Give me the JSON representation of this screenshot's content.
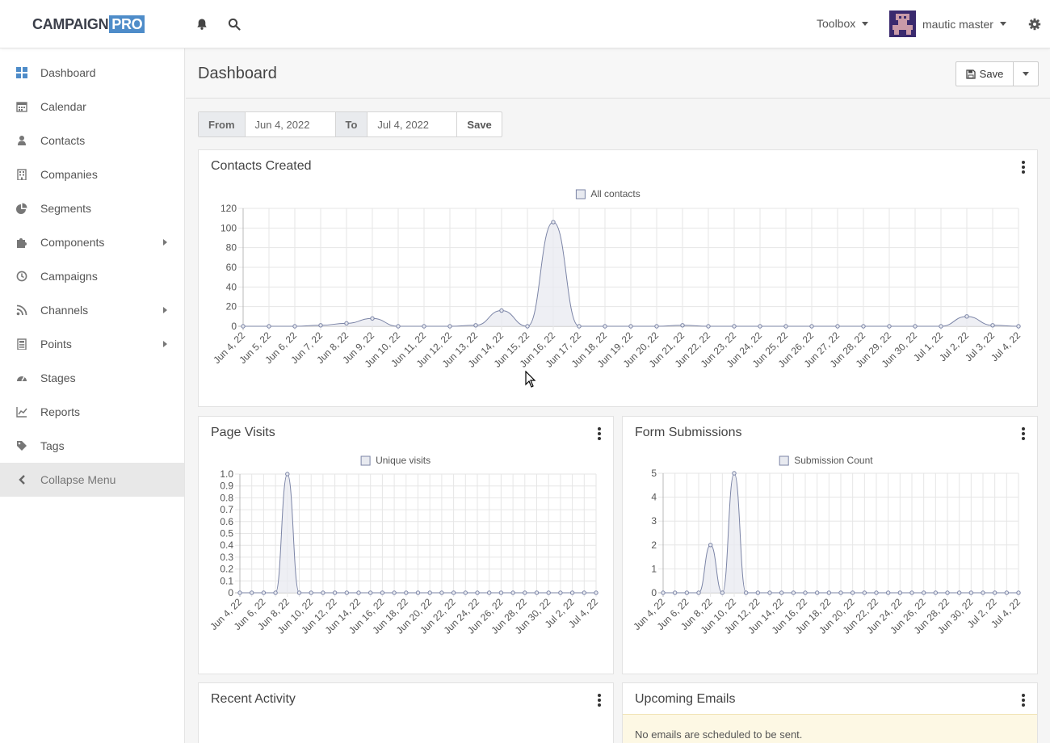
{
  "app": {
    "logo_a": "CAMPAIGN",
    "logo_b": "PRO",
    "toolbox_label": "Toolbox",
    "user_name": "mautic master"
  },
  "sidebar": {
    "items": [
      {
        "label": "Dashboard",
        "icon": "dashboard-icon",
        "submenu": false
      },
      {
        "label": "Calendar",
        "icon": "calendar-icon",
        "submenu": false
      },
      {
        "label": "Contacts",
        "icon": "user-icon",
        "submenu": false
      },
      {
        "label": "Companies",
        "icon": "building-icon",
        "submenu": false
      },
      {
        "label": "Segments",
        "icon": "pie-chart-icon",
        "submenu": false
      },
      {
        "label": "Components",
        "icon": "puzzle-icon",
        "submenu": true
      },
      {
        "label": "Campaigns",
        "icon": "clock-icon",
        "submenu": false
      },
      {
        "label": "Channels",
        "icon": "rss-icon",
        "submenu": true
      },
      {
        "label": "Points",
        "icon": "calculator-icon",
        "submenu": true
      },
      {
        "label": "Stages",
        "icon": "tachometer-icon",
        "submenu": false
      },
      {
        "label": "Reports",
        "icon": "line-chart-icon",
        "submenu": false
      },
      {
        "label": "Tags",
        "icon": "tag-icon",
        "submenu": false
      }
    ],
    "collapse_label": "Collapse Menu"
  },
  "main": {
    "title": "Dashboard",
    "save_label": "Save",
    "date_filter": {
      "from_label": "From",
      "from_value": "Jun 4, 2022",
      "to_label": "To",
      "to_value": "Jul 4, 2022",
      "save_label": "Save"
    },
    "widgets": {
      "contacts_title": "Contacts Created",
      "page_visits_title": "Page Visits",
      "form_submissions_title": "Form Submissions",
      "recent_activity_title": "Recent Activity",
      "upcoming_emails_title": "Upcoming Emails",
      "upcoming_emails_notice": "No emails are scheduled to be sent."
    }
  },
  "colors": {
    "line": "#7b84a6",
    "fill": "#e8eaf0",
    "accent": "#4e8cc9"
  },
  "chart_data": [
    {
      "type": "area",
      "title": "Contacts Created",
      "series": [
        {
          "name": "All contacts",
          "values": [
            0,
            0,
            0,
            1,
            3,
            8,
            0,
            0,
            0,
            1,
            16,
            0,
            106,
            0,
            0,
            0,
            0,
            1,
            0,
            0,
            0,
            0,
            0,
            0,
            0,
            0,
            0,
            0,
            10,
            1,
            0
          ]
        }
      ],
      "x": [
        "Jun 4, 22",
        "Jun 5, 22",
        "Jun 6, 22",
        "Jun 7, 22",
        "Jun 8, 22",
        "Jun 9, 22",
        "Jun 10, 22",
        "Jun 11, 22",
        "Jun 12, 22",
        "Jun 13, 22",
        "Jun 14, 22",
        "Jun 15, 22",
        "Jun 16, 22",
        "Jun 17, 22",
        "Jun 18, 22",
        "Jun 19, 22",
        "Jun 20, 22",
        "Jun 21, 22",
        "Jun 22, 22",
        "Jun 23, 22",
        "Jun 24, 22",
        "Jun 25, 22",
        "Jun 26, 22",
        "Jun 27, 22",
        "Jun 28, 22",
        "Jun 29, 22",
        "Jun 30, 22",
        "Jul 1, 22",
        "Jul 2, 22",
        "Jul 3, 22",
        "Jul 4, 22"
      ],
      "ylim": [
        0,
        120
      ],
      "yticks": [
        "0",
        "20",
        "40",
        "60",
        "80",
        "100",
        "120"
      ],
      "grid": true,
      "legend": "top-center"
    },
    {
      "type": "area",
      "title": "Page Visits",
      "series": [
        {
          "name": "Unique visits",
          "values": [
            0,
            0,
            0,
            0,
            1,
            0,
            0,
            0,
            0,
            0,
            0,
            0,
            0,
            0,
            0,
            0,
            0,
            0,
            0,
            0,
            0,
            0,
            0,
            0,
            0,
            0,
            0,
            0,
            0,
            0,
            0
          ]
        }
      ],
      "x": [
        "Jun 4, 22",
        "Jun 5, 22",
        "Jun 6, 22",
        "Jun 7, 22",
        "Jun 8, 22",
        "Jun 9, 22",
        "Jun 10, 22",
        "Jun 11, 22",
        "Jun 12, 22",
        "Jun 13, 22",
        "Jun 14, 22",
        "Jun 15, 22",
        "Jun 16, 22",
        "Jun 17, 22",
        "Jun 18, 22",
        "Jun 19, 22",
        "Jun 20, 22",
        "Jun 21, 22",
        "Jun 22, 22",
        "Jun 23, 22",
        "Jun 24, 22",
        "Jun 25, 22",
        "Jun 26, 22",
        "Jun 27, 22",
        "Jun 28, 22",
        "Jun 29, 22",
        "Jun 30, 22",
        "Jul 1, 22",
        "Jul 2, 22",
        "Jul 3, 22",
        "Jul 4, 22"
      ],
      "xticks": [
        "Jun 4, 22",
        "Jun 6, 22",
        "Jun 8, 22",
        "Jun 10, 22",
        "Jun 12, 22",
        "Jun 14, 22",
        "Jun 16, 22",
        "Jun 18, 22",
        "Jun 20, 22",
        "Jun 22, 22",
        "Jun 24, 22",
        "Jun 26, 22",
        "Jun 28, 22",
        "Jun 30, 22",
        "Jul 2, 22",
        "Jul 4, 22"
      ],
      "ylim": [
        0,
        1.0
      ],
      "yticks": [
        "0",
        "0.1",
        "0.2",
        "0.3",
        "0.4",
        "0.5",
        "0.6",
        "0.7",
        "0.8",
        "0.9",
        "1.0"
      ],
      "grid": true,
      "legend": "top-center"
    },
    {
      "type": "area",
      "title": "Form Submissions",
      "series": [
        {
          "name": "Submission Count",
          "values": [
            0,
            0,
            0,
            0,
            2,
            0,
            5,
            0,
            0,
            0,
            0,
            0,
            0,
            0,
            0,
            0,
            0,
            0,
            0,
            0,
            0,
            0,
            0,
            0,
            0,
            0,
            0,
            0,
            0,
            0,
            0
          ]
        }
      ],
      "x": [
        "Jun 4, 22",
        "Jun 5, 22",
        "Jun 6, 22",
        "Jun 7, 22",
        "Jun 8, 22",
        "Jun 9, 22",
        "Jun 10, 22",
        "Jun 11, 22",
        "Jun 12, 22",
        "Jun 13, 22",
        "Jun 14, 22",
        "Jun 15, 22",
        "Jun 16, 22",
        "Jun 17, 22",
        "Jun 18, 22",
        "Jun 19, 22",
        "Jun 20, 22",
        "Jun 21, 22",
        "Jun 22, 22",
        "Jun 23, 22",
        "Jun 24, 22",
        "Jun 25, 22",
        "Jun 26, 22",
        "Jun 27, 22",
        "Jun 28, 22",
        "Jun 29, 22",
        "Jun 30, 22",
        "Jul 1, 22",
        "Jul 2, 22",
        "Jul 3, 22",
        "Jul 4, 22"
      ],
      "xticks": [
        "Jun 4, 22",
        "Jun 6, 22",
        "Jun 8, 22",
        "Jun 10, 22",
        "Jun 12, 22",
        "Jun 14, 22",
        "Jun 16, 22",
        "Jun 18, 22",
        "Jun 20, 22",
        "Jun 22, 22",
        "Jun 24, 22",
        "Jun 26, 22",
        "Jun 28, 22",
        "Jun 30, 22",
        "Jul 2, 22",
        "Jul 4, 22"
      ],
      "ylim": [
        0,
        5
      ],
      "yticks": [
        "0",
        "1",
        "2",
        "3",
        "4",
        "5"
      ],
      "grid": true,
      "legend": "top-center"
    }
  ]
}
